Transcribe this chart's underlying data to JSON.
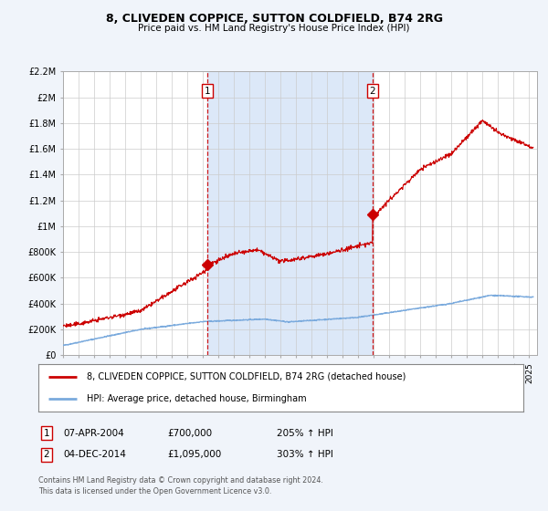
{
  "title": "8, CLIVEDEN COPPICE, SUTTON COLDFIELD, B74 2RG",
  "subtitle": "Price paid vs. HM Land Registry's House Price Index (HPI)",
  "bg_color": "#f0f4fa",
  "plot_bg_color": "#ffffff",
  "grid_color": "#cccccc",
  "red_line_color": "#cc0000",
  "blue_line_color": "#7aaadd",
  "shade_color": "#dce8f8",
  "ylim": [
    0,
    2200000
  ],
  "yticks": [
    0,
    200000,
    400000,
    600000,
    800000,
    1000000,
    1200000,
    1400000,
    1600000,
    1800000,
    2000000,
    2200000
  ],
  "ytick_labels": [
    "£0",
    "£200K",
    "£400K",
    "£600K",
    "£800K",
    "£1M",
    "£1.2M",
    "£1.4M",
    "£1.6M",
    "£1.8M",
    "£2M",
    "£2.2M"
  ],
  "xlim_start": 1995.0,
  "xlim_end": 2025.5,
  "xticks": [
    1995,
    1996,
    1997,
    1998,
    1999,
    2000,
    2001,
    2002,
    2003,
    2004,
    2005,
    2006,
    2007,
    2008,
    2009,
    2010,
    2011,
    2012,
    2013,
    2014,
    2015,
    2016,
    2017,
    2018,
    2019,
    2020,
    2021,
    2022,
    2023,
    2024,
    2025
  ],
  "purchase1_x": 2004.27,
  "purchase1_y": 700000,
  "purchase1_label": "1",
  "purchase2_x": 2014.92,
  "purchase2_y": 1095000,
  "purchase2_label": "2",
  "legend_red": "8, CLIVEDEN COPPICE, SUTTON COLDFIELD, B74 2RG (detached house)",
  "legend_blue": "HPI: Average price, detached house, Birmingham",
  "table_row1": [
    "1",
    "07-APR-2004",
    "£700,000",
    "205% ↑ HPI"
  ],
  "table_row2": [
    "2",
    "04-DEC-2014",
    "£1,095,000",
    "303% ↑ HPI"
  ],
  "footer": "Contains HM Land Registry data © Crown copyright and database right 2024.\nThis data is licensed under the Open Government Licence v3.0.",
  "marker_color": "#cc0000",
  "dashed_line_color": "#cc0000"
}
